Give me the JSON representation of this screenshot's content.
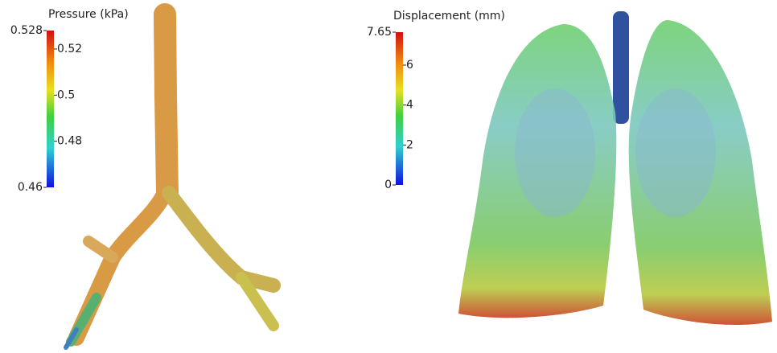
{
  "panels": [
    {
      "colorbar": {
        "title": "Pressure (kPa)",
        "ticks": [
          0.528,
          0.52,
          0.5,
          0.48,
          0.46
        ]
      }
    },
    {
      "colorbar": {
        "title": "Displacement (mm)",
        "ticks": [
          7.65,
          6,
          4,
          2,
          0
        ]
      }
    }
  ]
}
